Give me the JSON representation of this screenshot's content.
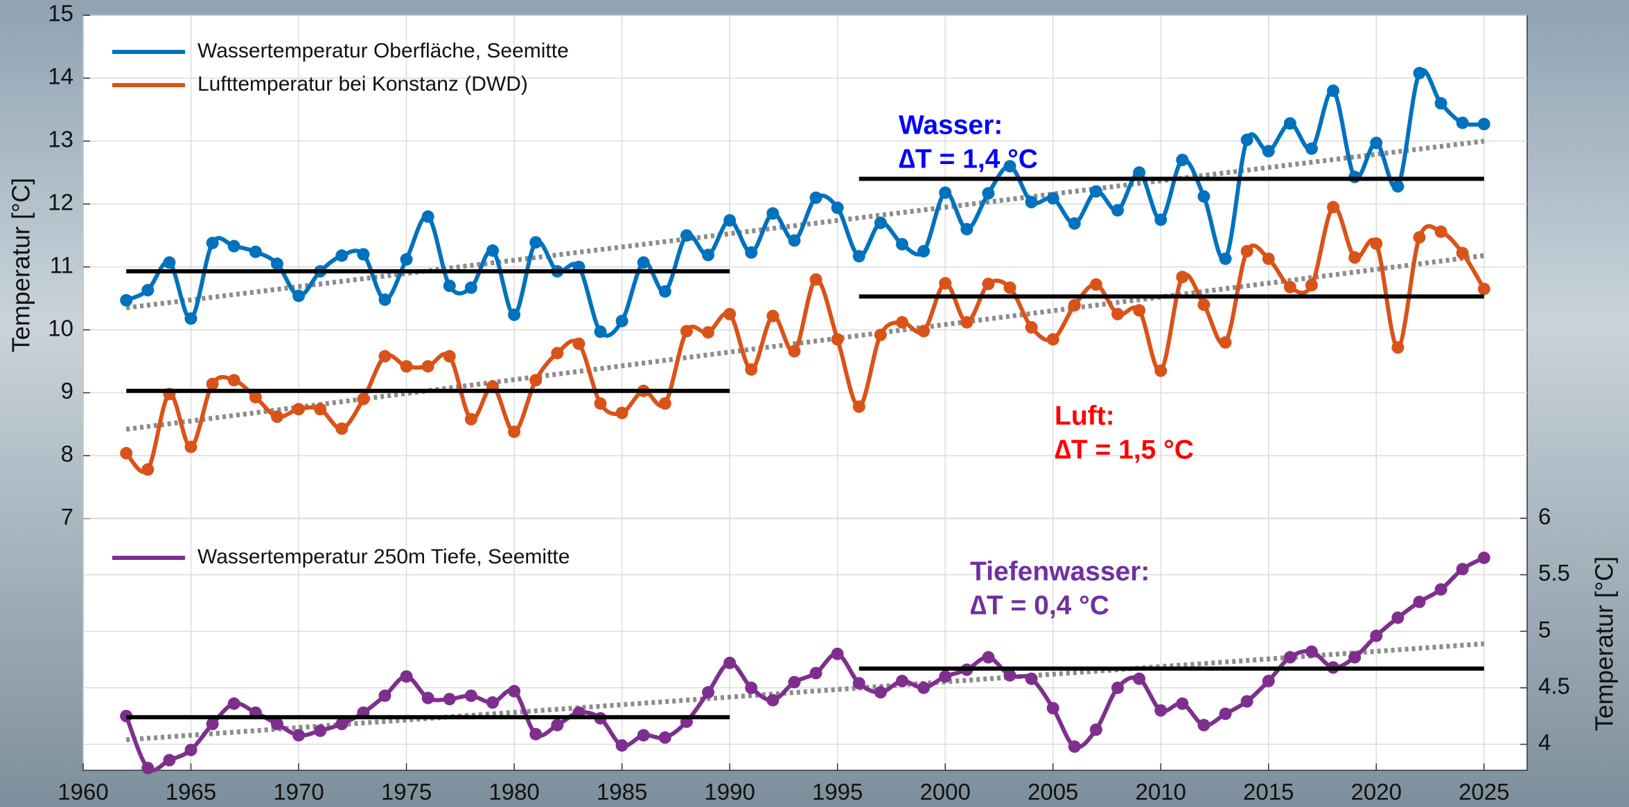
{
  "chart_data": {
    "type": "line",
    "x": [
      1962,
      1963,
      1964,
      1965,
      1966,
      1967,
      1968,
      1969,
      1970,
      1971,
      1972,
      1973,
      1974,
      1975,
      1976,
      1977,
      1978,
      1979,
      1980,
      1981,
      1982,
      1983,
      1984,
      1985,
      1986,
      1987,
      1988,
      1989,
      1990,
      1991,
      1992,
      1993,
      1994,
      1995,
      1996,
      1997,
      1998,
      1999,
      2000,
      2001,
      2002,
      2003,
      2004,
      2005,
      2006,
      2007,
      2008,
      2009,
      2010,
      2011,
      2012,
      2013,
      2014,
      2015,
      2016,
      2017,
      2018,
      2019,
      2020,
      2021,
      2022,
      2023,
      2024,
      2025
    ],
    "ylabel": "Temperatur [°C]",
    "y2label": "Temperatur [°C]",
    "xlim": [
      1960,
      2027
    ],
    "xticks": [
      1960,
      1965,
      1970,
      1975,
      1980,
      1985,
      1990,
      1995,
      2000,
      2005,
      2010,
      2015,
      2020,
      2025
    ],
    "ylim": [
      3,
      15
    ],
    "yticks": [
      7,
      8,
      9,
      10,
      11,
      12,
      13,
      14,
      15
    ],
    "y2lim": [
      3.77,
      10.45
    ],
    "y2ticks": [
      4,
      4.5,
      5,
      5.5,
      6
    ],
    "grid": true,
    "series": [
      {
        "name": "Wassertemperatur Oberfläche, Seemitte",
        "color": "#0072bd",
        "values": [
          10.47,
          10.63,
          11.07,
          10.18,
          11.38,
          11.33,
          11.24,
          11.05,
          10.54,
          10.93,
          11.18,
          11.2,
          10.48,
          11.12,
          11.8,
          10.7,
          10.67,
          11.26,
          10.24,
          11.39,
          10.93,
          11.0,
          9.97,
          10.14,
          11.07,
          10.61,
          11.5,
          11.19,
          11.74,
          11.23,
          11.85,
          11.42,
          12.1,
          11.94,
          11.17,
          11.7,
          11.36,
          11.25,
          12.18,
          11.6,
          12.17,
          12.6,
          12.03,
          12.09,
          11.69,
          12.2,
          11.9,
          12.5,
          11.75,
          12.7,
          12.12,
          11.13,
          13.02,
          12.84,
          13.28,
          12.88,
          13.8,
          12.43,
          12.97,
          12.28,
          14.08,
          13.6,
          13.29,
          13.27
        ],
        "means": [
          {
            "x": [
              1962,
              1990
            ],
            "value": 10.93
          },
          {
            "x": [
              1996,
              2025
            ],
            "value": 12.4
          }
        ],
        "trend": {
          "x": [
            1962,
            2025
          ],
          "values": [
            10.35,
            13.0
          ]
        }
      },
      {
        "name": "Lufttemperatur bei Konstanz (DWD)",
        "color": "#d95319",
        "values": [
          8.04,
          7.78,
          8.98,
          8.14,
          9.14,
          9.2,
          8.93,
          8.62,
          8.74,
          8.74,
          8.43,
          8.9,
          9.58,
          9.42,
          9.42,
          9.58,
          8.58,
          9.1,
          8.38,
          9.2,
          9.63,
          9.78,
          8.83,
          8.68,
          9.03,
          8.83,
          9.98,
          9.96,
          10.25,
          9.37,
          10.22,
          9.66,
          10.8,
          9.85,
          8.78,
          9.92,
          10.12,
          9.98,
          10.74,
          10.12,
          10.73,
          10.67,
          10.04,
          9.85,
          10.39,
          10.72,
          10.25,
          10.31,
          9.35,
          10.84,
          10.4,
          9.8,
          11.25,
          11.13,
          10.68,
          10.71,
          11.95,
          11.15,
          11.37,
          9.72,
          11.47,
          11.56,
          11.22,
          10.65
        ],
        "means": [
          {
            "x": [
              1962,
              1990
            ],
            "value": 9.03
          },
          {
            "x": [
              1996,
              2025
            ],
            "value": 10.53
          }
        ],
        "trend": {
          "x": [
            1962,
            2025
          ],
          "values": [
            8.42,
            11.18
          ]
        }
      },
      {
        "name": "Wassertemperatur 250m Tiefe, Seemitte",
        "color": "#7e2f8e",
        "axis": "y2",
        "values": [
          4.25,
          3.79,
          3.86,
          3.95,
          4.18,
          4.36,
          4.28,
          4.18,
          4.08,
          4.12,
          4.18,
          4.28,
          4.43,
          4.6,
          4.41,
          4.4,
          4.43,
          4.37,
          4.47,
          4.09,
          4.17,
          4.28,
          4.23,
          3.99,
          4.08,
          4.06,
          4.2,
          4.46,
          4.72,
          4.5,
          4.39,
          4.55,
          4.63,
          4.8,
          4.54,
          4.46,
          4.56,
          4.5,
          4.6,
          4.66,
          4.77,
          4.61,
          4.58,
          4.32,
          3.98,
          4.13,
          4.5,
          4.58,
          4.3,
          4.36,
          4.17,
          4.27,
          4.38,
          4.56,
          4.77,
          4.82,
          4.68,
          4.77,
          4.96,
          5.12,
          5.26,
          5.37,
          5.55,
          5.65
        ],
        "means": [
          {
            "x": [
              1962,
              1990
            ],
            "value": 4.24
          },
          {
            "x": [
              1996,
              2025
            ],
            "value": 4.67
          }
        ],
        "trend": {
          "x": [
            1962,
            2025
          ],
          "values": [
            4.04,
            4.89
          ]
        }
      }
    ],
    "annotations": [
      {
        "lines": [
          "Wasser:",
          "∆T = 1,4 °C"
        ],
        "color": "#0000ff"
      },
      {
        "lines": [
          "Luft:",
          "∆T = 1,5 °C"
        ],
        "color": "#ff0000"
      },
      {
        "lines": [
          "Tiefenwasser:",
          "∆T = 0,4 °C"
        ],
        "color": "#7030a0"
      }
    ]
  }
}
